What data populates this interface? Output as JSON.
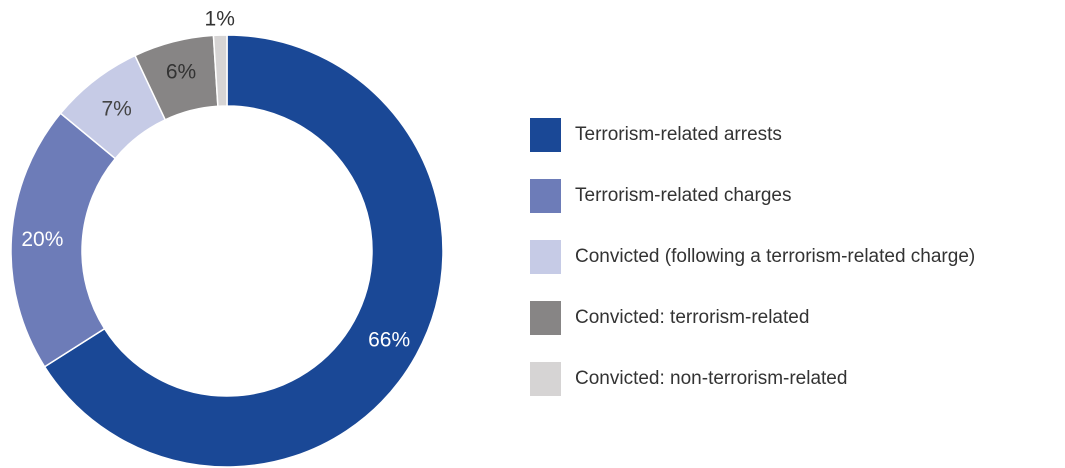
{
  "chart_data": {
    "type": "pie",
    "donut": true,
    "categories": [
      "Terrorism-related arrests",
      "Terrorism-related charges",
      "Convicted (following a terrorism-related charge)",
      "Convicted: terrorism-related",
      "Convicted: non-terrorism-related"
    ],
    "values": [
      66,
      20,
      7,
      6,
      1
    ],
    "value_labels": [
      "66%",
      "20%",
      "7%",
      "6%",
      "1%"
    ],
    "colors": [
      "#1a4896",
      "#6d7cb8",
      "#c6cbe6",
      "#878585",
      "#d6d4d4"
    ],
    "label_colors": [
      "#ffffff",
      "#ffffff",
      "#444444",
      "#333333",
      "#333333"
    ],
    "start_angle": "12 o'clock",
    "direction": "clockwise",
    "legend_position": "right"
  }
}
